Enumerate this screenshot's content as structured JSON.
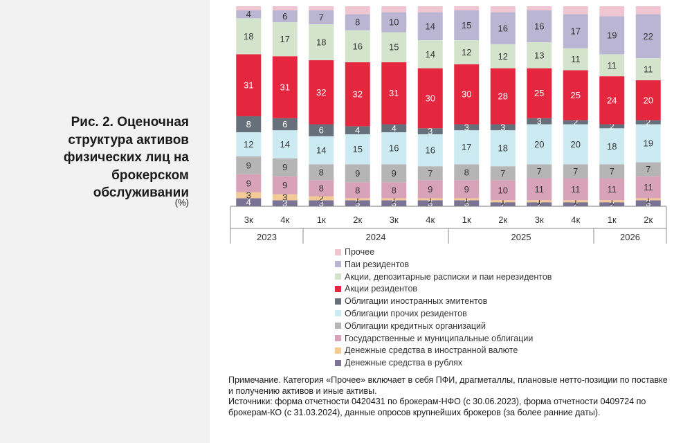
{
  "figure": {
    "title": "Рис. 2. Оценочная структура активов физических лиц на брокерском обслуживании",
    "unit": "(%)"
  },
  "chart_data": {
    "type": "bar",
    "stacked": true,
    "ylim": [
      0,
      100
    ],
    "grid": false,
    "legend_position": "bottom",
    "categories": [
      "3к",
      "4к",
      "1к",
      "2к",
      "3к",
      "4к",
      "1к",
      "2к",
      "3к",
      "4к",
      "1к",
      "2к"
    ],
    "years": [
      {
        "label": "2023",
        "count": 2
      },
      {
        "label": "2024",
        "count": 4
      },
      {
        "label": "2025",
        "count": 4
      },
      {
        "label": "2026",
        "count": 2
      }
    ],
    "series": [
      {
        "name": "Денежные средства в рублях",
        "color": "#7a7396",
        "values": [
          4,
          3,
          3,
          3,
          3,
          3,
          3,
          2,
          2,
          2,
          2,
          3
        ]
      },
      {
        "name": "Денежные средства в иностранной валюте",
        "color": "#f3c995",
        "values": [
          3,
          3,
          2,
          1,
          1,
          1,
          1,
          1,
          1,
          1,
          1,
          1
        ]
      },
      {
        "name": "Государственные и муниципальные облигации",
        "color": "#d8a2b8",
        "values": [
          9,
          9,
          8,
          8,
          8,
          9,
          9,
          10,
          11,
          11,
          11,
          11
        ]
      },
      {
        "name": "Облигации кредитных организаций",
        "color": "#b5b5b5",
        "values": [
          9,
          9,
          8,
          9,
          9,
          7,
          8,
          7,
          7,
          7,
          7,
          7
        ]
      },
      {
        "name": "Облигации прочих резидентов",
        "color": "#cceaf1",
        "values": [
          12,
          14,
          14,
          15,
          16,
          16,
          17,
          18,
          20,
          20,
          18,
          19
        ]
      },
      {
        "name": "Облигации иностранных эмитентов",
        "color": "#66707a",
        "values": [
          8,
          6,
          6,
          4,
          4,
          3,
          3,
          3,
          3,
          2,
          2,
          2
        ]
      },
      {
        "name": "Акции резидентов",
        "color": "#e5263f",
        "values": [
          31,
          31,
          32,
          32,
          31,
          30,
          30,
          28,
          25,
          25,
          24,
          20
        ]
      },
      {
        "name": "Акции, депозитарные расписки и паи нерезидентов",
        "color": "#d3e3cc",
        "values": [
          18,
          17,
          18,
          16,
          15,
          14,
          12,
          12,
          13,
          11,
          11,
          11
        ]
      },
      {
        "name": "Паи резидентов",
        "color": "#bab5d3",
        "values": [
          4,
          6,
          7,
          8,
          10,
          14,
          15,
          16,
          16,
          17,
          19,
          22
        ]
      },
      {
        "name": "Прочее",
        "color": "#efc5d2",
        "values": [
          2,
          2,
          2,
          4,
          3,
          3,
          2,
          3,
          2,
          4,
          5,
          4
        ]
      }
    ]
  },
  "legend_order": [
    9,
    8,
    7,
    6,
    5,
    4,
    3,
    2,
    1,
    0
  ],
  "note": {
    "line1": "Примечание. Категория «Прочее» включает в себя ПФИ, драгметаллы, плановые нетто-позиции по поставке и получению активов и иные активы.",
    "line2": "Источники: форма отчетности 0420431 по брокерам-НФО (с 30.06.2023), форма отчетности 0409724 по брокерам-КО (с 31.03.2024), данные опросов крупнейших брокеров (за более ранние даты)."
  }
}
